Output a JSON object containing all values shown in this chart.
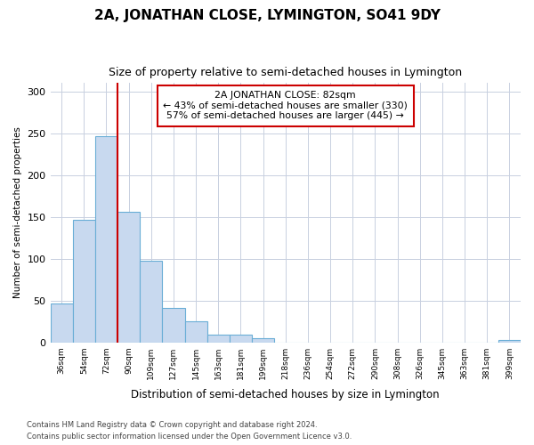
{
  "title1": "2A, JONATHAN CLOSE, LYMINGTON, SO41 9DY",
  "title2": "Size of property relative to semi-detached houses in Lymington",
  "xlabel": "Distribution of semi-detached houses by size in Lymington",
  "ylabel": "Number of semi-detached properties",
  "categories": [
    "36sqm",
    "54sqm",
    "72sqm",
    "90sqm",
    "109sqm",
    "127sqm",
    "145sqm",
    "163sqm",
    "181sqm",
    "199sqm",
    "218sqm",
    "236sqm",
    "254sqm",
    "272sqm",
    "290sqm",
    "308sqm",
    "326sqm",
    "345sqm",
    "363sqm",
    "381sqm",
    "399sqm"
  ],
  "values": [
    46,
    146,
    246,
    156,
    97,
    41,
    25,
    9,
    9,
    5,
    0,
    0,
    0,
    0,
    0,
    0,
    0,
    0,
    0,
    0,
    3
  ],
  "bar_color": "#c8d9ef",
  "bar_edge_color": "#6aaed6",
  "vline_color": "#cc0000",
  "annotation_title": "2A JONATHAN CLOSE: 82sqm",
  "annotation_line1": "← 43% of semi-detached houses are smaller (330)",
  "annotation_line2": "57% of semi-detached houses are larger (445) →",
  "annotation_box_color": "white",
  "annotation_box_edge": "#cc0000",
  "ylim": [
    0,
    310
  ],
  "yticks": [
    0,
    50,
    100,
    150,
    200,
    250,
    300
  ],
  "footer1": "Contains HM Land Registry data © Crown copyright and database right 2024.",
  "footer2": "Contains public sector information licensed under the Open Government Licence v3.0.",
  "background_color": "#ffffff",
  "plot_background": "#ffffff",
  "grid_color": "#c8d0e0"
}
